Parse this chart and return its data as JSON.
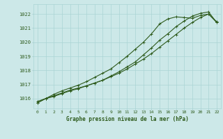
{
  "xlabel": "Graphe pression niveau de la mer (hPa)",
  "xlim": [
    -0.5,
    22.5
  ],
  "ylim": [
    1015.3,
    1022.7
  ],
  "yticks": [
    1016,
    1017,
    1018,
    1019,
    1020,
    1021,
    1022
  ],
  "xticks": [
    0,
    1,
    2,
    3,
    4,
    5,
    6,
    7,
    8,
    9,
    10,
    11,
    12,
    13,
    14,
    15,
    16,
    17,
    18,
    19,
    20,
    21,
    22
  ],
  "bg_color": "#cce8e8",
  "grid_color": "#aad4d4",
  "line_color": "#2d5a1b",
  "series1_x": [
    0,
    1,
    2,
    3,
    4,
    5,
    6,
    7,
    8,
    9,
    10,
    11,
    12,
    13,
    14,
    15,
    16,
    17,
    18,
    19,
    20,
    21,
    22
  ],
  "series1_y": [
    1015.8,
    1016.0,
    1016.2,
    1016.4,
    1016.6,
    1016.75,
    1016.9,
    1017.1,
    1017.3,
    1017.55,
    1017.8,
    1018.1,
    1018.45,
    1018.8,
    1019.2,
    1019.65,
    1020.1,
    1020.55,
    1021.0,
    1021.4,
    1021.75,
    1022.0,
    1021.4
  ],
  "series2_x": [
    0,
    1,
    2,
    3,
    4,
    5,
    6,
    7,
    8,
    9,
    10,
    11,
    12,
    13,
    14,
    15,
    16,
    17,
    18,
    19,
    20,
    21,
    22
  ],
  "series2_y": [
    1015.7,
    1016.0,
    1016.3,
    1016.55,
    1016.75,
    1016.95,
    1017.2,
    1017.5,
    1017.8,
    1018.1,
    1018.55,
    1019.0,
    1019.5,
    1020.0,
    1020.6,
    1021.3,
    1021.65,
    1021.8,
    1021.75,
    1021.7,
    1021.9,
    1022.0,
    1021.45
  ],
  "series3_x": [
    0,
    1,
    2,
    3,
    4,
    5,
    6,
    7,
    8,
    9,
    10,
    11,
    12,
    13,
    14,
    15,
    16,
    17,
    18,
    19,
    20,
    21,
    22
  ],
  "series3_y": [
    1015.7,
    1016.0,
    1016.15,
    1016.35,
    1016.55,
    1016.7,
    1016.9,
    1017.1,
    1017.3,
    1017.6,
    1017.9,
    1018.25,
    1018.6,
    1019.1,
    1019.6,
    1020.15,
    1020.6,
    1021.1,
    1021.5,
    1021.85,
    1022.05,
    1022.15,
    1021.4
  ],
  "marker": "+",
  "markersize": 3,
  "linewidth": 0.8
}
